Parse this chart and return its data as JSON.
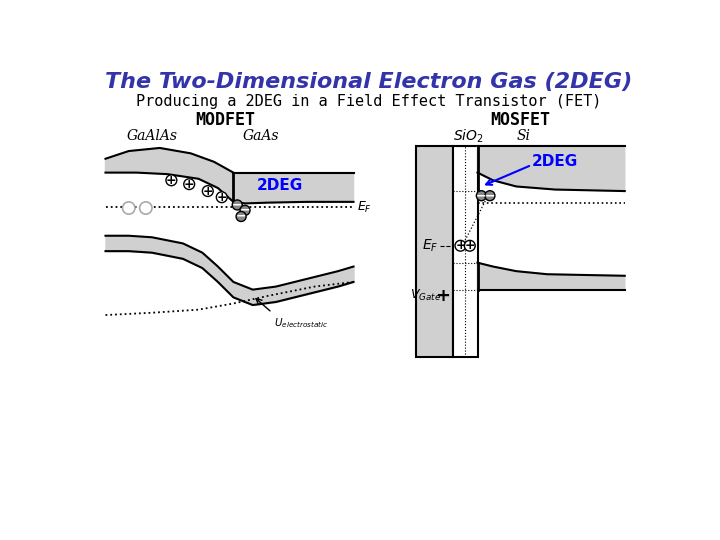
{
  "title": "The Two-Dimensional Electron Gas (2DEG)",
  "subtitle": "Producing a 2DEG in a Field Effect Transistor (FET)",
  "title_color": "#3333aa",
  "subtitle_color": "#000000",
  "bg_color": "#ffffff",
  "modfet_label": "MODFET",
  "mosfet_label": "MOSFET",
  "modfet_label1": "GaAlAs",
  "modfet_label2": "GaAs",
  "mosfet_label1": "SiO₂",
  "mosfet_label2": "Si",
  "gray_light": "#d0d0d0",
  "gray_mid": "#b8b8b8",
  "gray_dark": "#909090"
}
